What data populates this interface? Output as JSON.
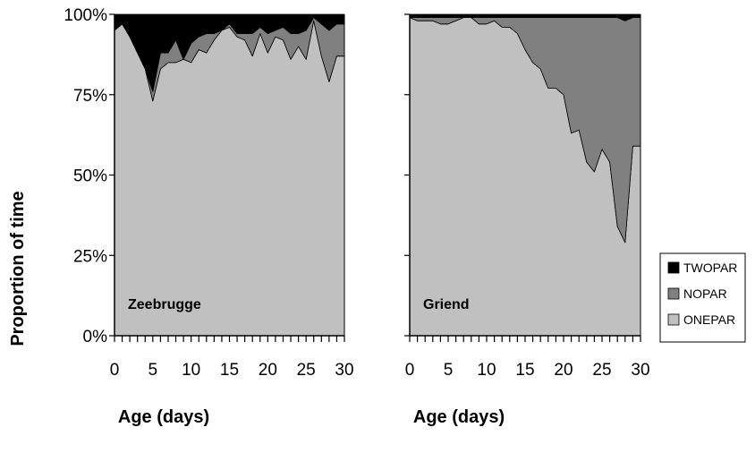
{
  "chart_data": {
    "type": "area",
    "stacked": true,
    "ylabel": "Proportion of time",
    "y_tick_labels": [
      "0%",
      "25%",
      "50%",
      "75%",
      "100%"
    ],
    "ylim": [
      0,
      1
    ],
    "x_tick_labels": [
      "0",
      "5",
      "10",
      "15",
      "20",
      "25",
      "30"
    ],
    "xlim": [
      0,
      30
    ],
    "legend_position": "right",
    "legend": [
      {
        "key": "TWOPAR",
        "label": "TWOPAR",
        "color": "#000000"
      },
      {
        "key": "NOPAR",
        "label": "NOPAR",
        "color": "#808080"
      },
      {
        "key": "ONEPAR",
        "label": "ONEPAR",
        "color": "#c0c0c0"
      }
    ],
    "panels": [
      {
        "label": "Zeebrugge",
        "xlabel": "Age (days)",
        "x": [
          0,
          1,
          2,
          3,
          4,
          5,
          6,
          7,
          8,
          9,
          10,
          11,
          12,
          13,
          14,
          15,
          16,
          17,
          18,
          19,
          20,
          21,
          22,
          23,
          24,
          25,
          26,
          27,
          28,
          29,
          30
        ],
        "series": [
          {
            "name": "ONEPAR",
            "values": [
              0.95,
              0.97,
              0.93,
              0.88,
              0.83,
              0.73,
              0.83,
              0.85,
              0.85,
              0.86,
              0.85,
              0.89,
              0.88,
              0.92,
              0.95,
              0.96,
              0.93,
              0.92,
              0.87,
              0.94,
              0.88,
              0.93,
              0.92,
              0.86,
              0.9,
              0.86,
              0.98,
              0.87,
              0.79,
              0.87,
              0.87
            ]
          },
          {
            "name": "NOPAR",
            "values": [
              0.0,
              0.0,
              0.0,
              0.0,
              0.0,
              0.03,
              0.05,
              0.03,
              0.07,
              0.0,
              0.06,
              0.04,
              0.06,
              0.02,
              0.0,
              0.01,
              0.01,
              0.02,
              0.07,
              0.02,
              0.06,
              0.02,
              0.04,
              0.08,
              0.04,
              0.09,
              0.01,
              0.1,
              0.16,
              0.1,
              0.1
            ]
          },
          {
            "name": "TWOPAR",
            "values": [
              0.05,
              0.03,
              0.07,
              0.12,
              0.17,
              0.24,
              0.12,
              0.12,
              0.08,
              0.14,
              0.09,
              0.07,
              0.06,
              0.06,
              0.05,
              0.03,
              0.06,
              0.06,
              0.06,
              0.04,
              0.06,
              0.05,
              0.04,
              0.06,
              0.06,
              0.05,
              0.01,
              0.03,
              0.05,
              0.03,
              0.03
            ]
          }
        ]
      },
      {
        "label": "Griend",
        "xlabel": "Age (days)",
        "x": [
          0,
          1,
          2,
          3,
          4,
          5,
          6,
          7,
          8,
          9,
          10,
          11,
          12,
          13,
          14,
          15,
          16,
          17,
          18,
          19,
          20,
          21,
          22,
          23,
          24,
          25,
          26,
          27,
          28,
          29,
          30
        ],
        "series": [
          {
            "name": "ONEPAR",
            "values": [
              0.99,
              0.98,
              0.98,
              0.98,
              0.97,
              0.97,
              0.98,
              0.99,
              0.99,
              0.97,
              0.97,
              0.98,
              0.96,
              0.96,
              0.94,
              0.89,
              0.85,
              0.83,
              0.77,
              0.77,
              0.75,
              0.63,
              0.64,
              0.54,
              0.51,
              0.58,
              0.54,
              0.34,
              0.29,
              0.59,
              0.59
            ]
          },
          {
            "name": "NOPAR",
            "values": [
              0.0,
              0.01,
              0.01,
              0.01,
              0.02,
              0.02,
              0.01,
              0.0,
              0.0,
              0.02,
              0.02,
              0.01,
              0.03,
              0.03,
              0.05,
              0.1,
              0.14,
              0.16,
              0.22,
              0.22,
              0.24,
              0.36,
              0.35,
              0.45,
              0.48,
              0.41,
              0.45,
              0.65,
              0.69,
              0.4,
              0.4
            ]
          },
          {
            "name": "TWOPAR",
            "values": [
              0.01,
              0.01,
              0.01,
              0.01,
              0.01,
              0.01,
              0.01,
              0.01,
              0.01,
              0.01,
              0.01,
              0.01,
              0.01,
              0.01,
              0.01,
              0.01,
              0.01,
              0.01,
              0.01,
              0.01,
              0.01,
              0.01,
              0.01,
              0.01,
              0.01,
              0.01,
              0.01,
              0.01,
              0.02,
              0.01,
              0.01
            ]
          }
        ]
      }
    ]
  }
}
